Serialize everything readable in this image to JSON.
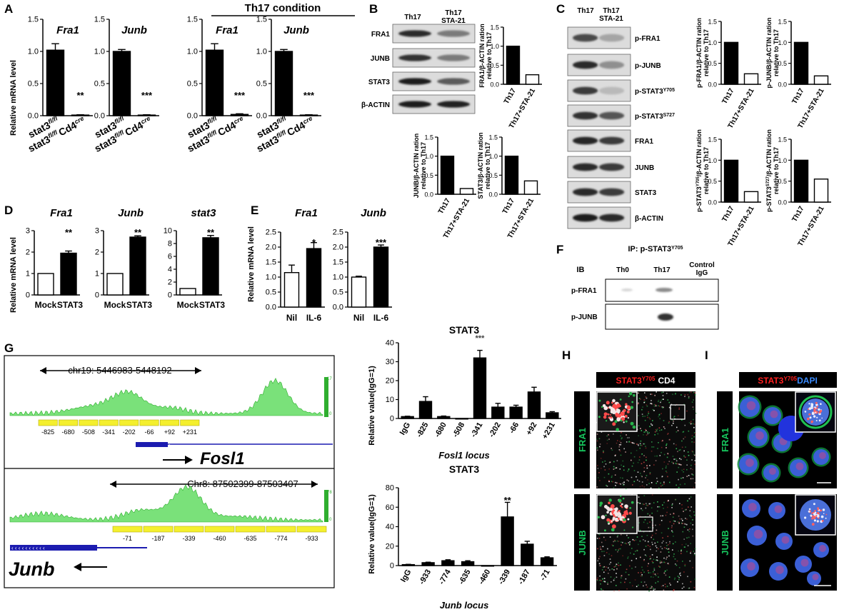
{
  "panel_letters": {
    "A": "A",
    "B": "B",
    "C": "C",
    "D": "D",
    "E": "E",
    "F": "F",
    "G": "G",
    "H": "H",
    "I": "I"
  },
  "colors": {
    "bar_filled": "#000000",
    "bar_open": "#ffffff",
    "coverage": "#7ae17a",
    "coverage_edge": "#2fae2f",
    "gene_track": "#1c1cb0",
    "primer_box": "#f4ef2e",
    "microscopy_bg": "#000000",
    "stat3_red": "#ff2020",
    "cd4_white": "#ffffff",
    "dapi_blue": "#3a8bff",
    "fra1_green": "#16c35c"
  },
  "panel_a": {
    "ylabel": "Relative mRNA level",
    "th17_header": "Th17 condition",
    "yticks": [
      "0.0",
      "0.5",
      "1.0",
      "1.5"
    ],
    "xtick_a": "stat3",
    "xtick_a_sup": "fl/fl",
    "xtick_b": "stat3",
    "xtick_b_sup": "fl/fl",
    "xtick_b2": "Cd4",
    "xtick_b2_sup": "cre",
    "groups": [
      {
        "title": "Fra1",
        "sig": "**"
      },
      {
        "title": "Junb",
        "sig": "***"
      },
      {
        "title": "Fra1",
        "sig": "***"
      },
      {
        "title": "Junb",
        "sig": "***"
      }
    ]
  },
  "panel_b": {
    "lane1": "Th17",
    "lane2a": "Th17",
    "lane2b": "STA-21",
    "rows": [
      "FRA1",
      "JUNB",
      "STAT3",
      "β-ACTIN"
    ],
    "yticks": [
      "0.0",
      "0.5",
      "1.0",
      "1.5"
    ],
    "xcat1": "Th17",
    "xcat2": "Th17+STA-21",
    "charts": [
      {
        "ylabel1": "FRA1/β-ACTIN ration",
        "ylabel2": "relative to Th17"
      },
      {
        "ylabel1": "JUNB/β-ACTIN ration",
        "ylabel2": "relative to Th17"
      },
      {
        "ylabel1": "STAT3/β-ACTIN ration",
        "ylabel2": "relative to Th17"
      }
    ]
  },
  "panel_c": {
    "lane1": "Th17",
    "lane2a": "Th17",
    "lane2b": "STA-21",
    "rows": [
      {
        "name": "p-FRA1",
        "sup": ""
      },
      {
        "name": "p-JUNB",
        "sup": ""
      },
      {
        "name": "p-STAT3",
        "sup": "Y705"
      },
      {
        "name": "p-STAT3",
        "sup": "S727"
      },
      {
        "name": "FRA1",
        "sup": ""
      },
      {
        "name": "JUNB",
        "sup": ""
      },
      {
        "name": "STAT3",
        "sup": ""
      },
      {
        "name": "β-ACTIN",
        "sup": ""
      }
    ],
    "yticks": [
      "0.0",
      "0.5",
      "1.0",
      "1.5"
    ],
    "xcat1": "Th17",
    "xcat2": "Th17+STA-21",
    "charts": [
      {
        "yl_a": "p-FRA1/β-ACTIN ration",
        "yl_sup": "",
        "yl_b": "relative to Th17"
      },
      {
        "yl_a": "p-JUNB/β-ACTIN ration",
        "yl_sup": "",
        "yl_b": "relative to Th17"
      },
      {
        "yl_a": "p-STAT3",
        "yl_sup": "Y705",
        "yl_a2": "/β-ACTIN ration",
        "yl_b": "relative to Th17"
      },
      {
        "yl_a": "p-STAT3",
        "yl_sup": "S727",
        "yl_a2": "/β-ACTIN ration",
        "yl_b": "relative to Th17"
      }
    ]
  },
  "panel_d": {
    "ylabel": "Relative mRNA level",
    "charts": [
      {
        "title": "Fra1",
        "yticks": [
          "0",
          "1",
          "2",
          "3"
        ],
        "sig": "**",
        "x1": "Mock",
        "x2": "STAT3"
      },
      {
        "title": "Junb",
        "yticks": [
          "0",
          "1",
          "2",
          "3"
        ],
        "sig": "**",
        "x1": "Mock",
        "x2": "STAT3"
      },
      {
        "title": "stat3",
        "yticks": [
          "0",
          "2",
          "4",
          "6",
          "8",
          "10"
        ],
        "sig": "**",
        "x1": "Mock",
        "x2": "STAT3"
      }
    ]
  },
  "panel_e": {
    "ylabel": "Relative mRNA level",
    "charts": [
      {
        "title": "Fra1",
        "yticks": [
          "0.0",
          "0.5",
          "1.0",
          "1.5",
          "2.0",
          "2.5"
        ],
        "sig": "*",
        "x1": "Nil",
        "x2": "IL-6"
      },
      {
        "title": "Junb",
        "yticks": [
          "0.0",
          "0.5",
          "1.0",
          "1.5",
          "2.0",
          "2.5"
        ],
        "sig": "***",
        "x1": "Nil",
        "x2": "IL-6"
      }
    ]
  },
  "panel_f": {
    "ip_label": "IP: p-STAT3",
    "ip_sup": "Y705",
    "ib": "IB",
    "lanes": [
      "Th0",
      "Th17",
      "Control"
    ],
    "lane3b": "IgG",
    "rows": [
      "p-FRA1",
      "p-JUNB"
    ]
  },
  "panel_g": {
    "track1": {
      "coords": "chr19: 5446983-5448192",
      "scale_top": "17",
      "scale_bot": "0",
      "gene": "Fosl1",
      "primers": [
        "-825",
        "-680",
        "-508",
        "-341",
        "-202",
        "-66",
        "+92",
        "+231"
      ]
    },
    "track2": {
      "coords": "Chr8: 87502399-87503407",
      "scale_top": "78",
      "scale_bot": "0",
      "gene": "Junb",
      "primers": [
        "-71",
        "-187",
        "-339",
        "-460",
        "-635",
        "-774",
        "-933"
      ]
    },
    "chart1": {
      "title": "STAT3",
      "ylabel": "Relative value(IgG=1)",
      "yticks": [
        "0",
        "10",
        "20",
        "30",
        "40"
      ],
      "xlabel": "Fosl1 locus",
      "sig": "***"
    },
    "chart2": {
      "title": "STAT3",
      "ylabel": "Relative value(IgG=1)",
      "yticks": [
        "0",
        "20",
        "40",
        "60",
        "80"
      ],
      "xlabel": "Junb locus",
      "sig": "**"
    }
  },
  "panel_h": {
    "header_a": "STAT3",
    "header_sup": "Y705",
    "header_b": "CD4",
    "rows": [
      "FRA1",
      "JUNB"
    ]
  },
  "panel_i": {
    "header_a": "STAT3",
    "header_sup": "Y705",
    "header_b": "DAPI",
    "rows": [
      "FRA1",
      "JUNB"
    ]
  },
  "chart_data": [
    {
      "type": "bar",
      "title": "Fra1",
      "categories": [
        "stat3 fl/fl",
        "stat3 fl/fl Cd4 cre"
      ],
      "values": [
        1.02,
        0.01
      ],
      "errors": [
        0.1,
        0.005
      ],
      "ylabel": "Relative mRNA level",
      "ylim": [
        0,
        1.5
      ]
    },
    {
      "type": "bar",
      "title": "Junb",
      "categories": [
        "stat3 fl/fl",
        "stat3 fl/fl Cd4 cre"
      ],
      "values": [
        1.0,
        0.01
      ],
      "errors": [
        0.03,
        0.005
      ],
      "ylabel": "Relative mRNA level",
      "ylim": [
        0,
        1.5
      ]
    },
    {
      "type": "bar",
      "title": "Th17 condition Fra1",
      "categories": [
        "stat3 fl/fl",
        "stat3 fl/fl Cd4 cre"
      ],
      "values": [
        1.02,
        0.02
      ],
      "errors": [
        0.1,
        0.01
      ],
      "ylim": [
        0,
        1.5
      ]
    },
    {
      "type": "bar",
      "title": "Th17 condition Junb",
      "categories": [
        "stat3 fl/fl",
        "stat3 fl/fl Cd4 cre"
      ],
      "values": [
        1.0,
        0.01
      ],
      "errors": [
        0.03,
        0.005
      ],
      "ylim": [
        0,
        1.5
      ]
    },
    {
      "type": "bar",
      "categories": [
        "Th17",
        "Th17+STA-21"
      ],
      "values": [
        1.0,
        0.25
      ],
      "ylabel": "FRA1/β-ACTIN ration relative to Th17",
      "ylim": [
        0,
        1.5
      ]
    },
    {
      "type": "bar",
      "categories": [
        "Th17",
        "Th17+STA-21"
      ],
      "values": [
        1.0,
        0.15
      ],
      "ylabel": "JUNB/β-ACTIN ration relative to Th17",
      "ylim": [
        0,
        1.5
      ]
    },
    {
      "type": "bar",
      "categories": [
        "Th17",
        "Th17+STA-21"
      ],
      "values": [
        1.0,
        0.35
      ],
      "ylabel": "STAT3/β-ACTIN ration relative to Th17",
      "ylim": [
        0,
        1.5
      ]
    },
    {
      "type": "bar",
      "categories": [
        "Th17",
        "Th17+STA-21"
      ],
      "values": [
        1.0,
        0.25
      ],
      "ylabel": "p-FRA1/β-ACTIN ration relative to Th17",
      "ylim": [
        0,
        1.5
      ]
    },
    {
      "type": "bar",
      "categories": [
        "Th17",
        "Th17+STA-21"
      ],
      "values": [
        1.0,
        0.2
      ],
      "ylabel": "p-JUNB/β-ACTIN ration relative to Th17",
      "ylim": [
        0,
        1.5
      ]
    },
    {
      "type": "bar",
      "categories": [
        "Th17",
        "Th17+STA-21"
      ],
      "values": [
        1.0,
        0.25
      ],
      "ylabel": "p-STAT3 Y705/β-ACTIN ration relative to Th17",
      "ylim": [
        0,
        1.5
      ]
    },
    {
      "type": "bar",
      "categories": [
        "Th17",
        "Th17+STA-21"
      ],
      "values": [
        1.0,
        0.55
      ],
      "ylabel": "p-STAT3 S727/β-ACTIN ration relative to Th17",
      "ylim": [
        0,
        1.5
      ]
    },
    {
      "type": "bar",
      "title": "Fra1",
      "categories": [
        "Mock",
        "STAT3"
      ],
      "values": [
        1.0,
        1.95
      ],
      "errors": [
        0,
        0.1
      ],
      "ylabel": "Relative mRNA level",
      "ylim": [
        0,
        3
      ]
    },
    {
      "type": "bar",
      "title": "Junb",
      "categories": [
        "Mock",
        "STAT3"
      ],
      "values": [
        1.0,
        2.7
      ],
      "errors": [
        0,
        0.06
      ],
      "ylim": [
        0,
        3
      ]
    },
    {
      "type": "bar",
      "title": "stat3",
      "categories": [
        "Mock",
        "STAT3"
      ],
      "values": [
        1.0,
        8.9
      ],
      "errors": [
        0,
        0.35
      ],
      "ylim": [
        0,
        10
      ]
    },
    {
      "type": "bar",
      "title": "Fra1",
      "categories": [
        "Nil",
        "IL-6"
      ],
      "values": [
        1.15,
        1.95
      ],
      "errors": [
        0.25,
        0.2
      ],
      "ylabel": "Relative mRNA level",
      "ylim": [
        0,
        2.5
      ]
    },
    {
      "type": "bar",
      "title": "Junb",
      "categories": [
        "Nil",
        "IL-6"
      ],
      "values": [
        1.0,
        2.0
      ],
      "errors": [
        0.03,
        0.07
      ],
      "ylim": [
        0,
        2.5
      ]
    },
    {
      "type": "bar",
      "title": "STAT3",
      "categories": [
        "IgG",
        "-825",
        "-680",
        "-508",
        "-341",
        "-202",
        "-66",
        "+92",
        "+231"
      ],
      "values": [
        1,
        9,
        1,
        0,
        32,
        6,
        6,
        14,
        3
      ],
      "errors": [
        0.2,
        2.5,
        0.3,
        0,
        4,
        2,
        1,
        2.5,
        0.6
      ],
      "xlabel": "Fosl1 locus",
      "ylabel": "Relative value(IgG=1)",
      "ylim": [
        0,
        40
      ]
    },
    {
      "type": "bar",
      "title": "STAT3",
      "categories": [
        "IgG",
        "-933",
        "-774",
        "-635",
        "-460",
        "-339",
        "-187",
        "-71"
      ],
      "values": [
        1,
        3,
        5,
        4,
        0,
        50,
        22,
        8
      ],
      "errors": [
        0.3,
        0.5,
        1,
        1,
        0,
        15,
        3,
        1
      ],
      "xlabel": "Junb locus",
      "ylabel": "Relative value(IgG=1)",
      "ylim": [
        0,
        80
      ]
    }
  ]
}
